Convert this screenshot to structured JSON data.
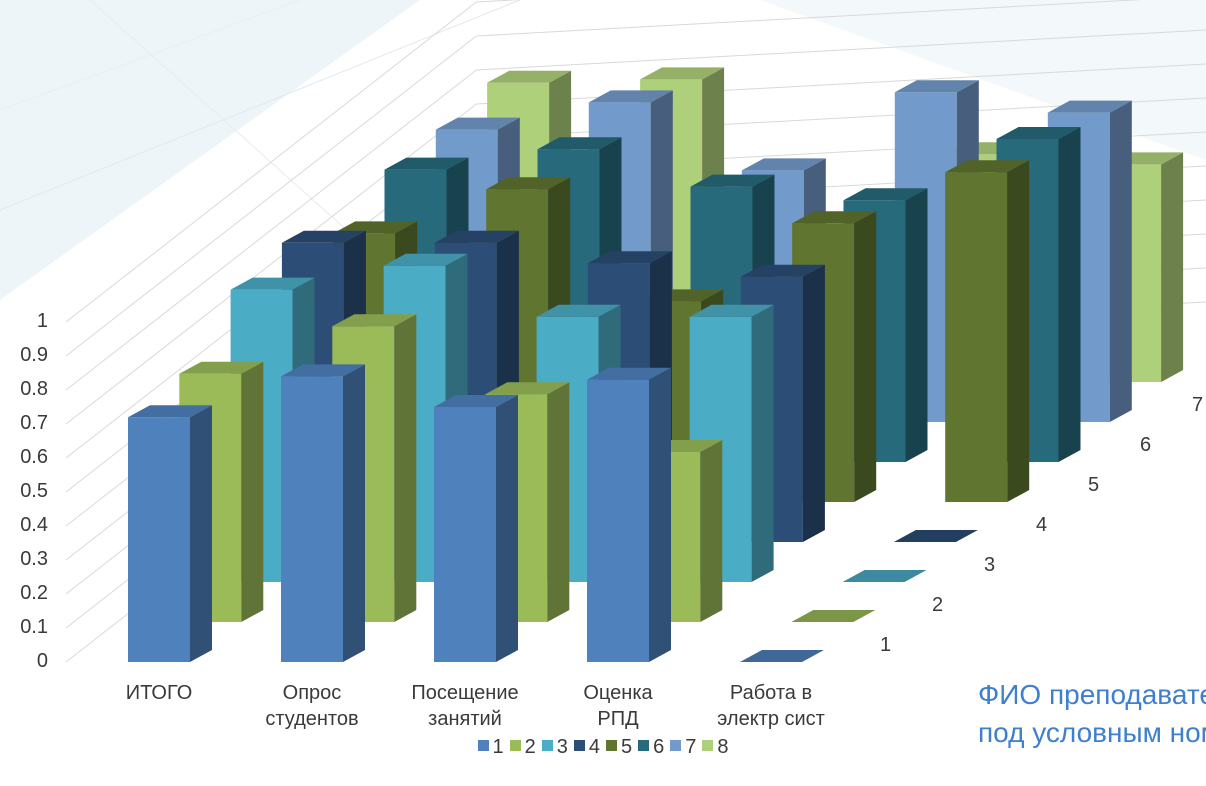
{
  "chart_data": {
    "type": "bar",
    "subtype": "3d-column",
    "title": "",
    "xlabel": "",
    "ylabel": "",
    "ylim": [
      0,
      1
    ],
    "y_ticks": [
      "0",
      "0.1",
      "0.2",
      "0.3",
      "0.4",
      "0.5",
      "0.6",
      "0.7",
      "0.8",
      "0.9",
      "1"
    ],
    "categories": [
      {
        "line1": "ИТОГО",
        "line2": ""
      },
      {
        "line1": "Опрос",
        "line2": "студентов"
      },
      {
        "line1": "Посещение",
        "line2": "занятий"
      },
      {
        "line1": "Оценка",
        "line2": "РПД"
      },
      {
        "line1": "Работа в",
        "line2": "электр сист"
      }
    ],
    "depth_ticks": [
      "1",
      "2",
      "3",
      "4",
      "5",
      "6",
      "7"
    ],
    "series": [
      {
        "name": "1",
        "color": "#4f81bd",
        "values": [
          0.72,
          0.84,
          0.75,
          0.83,
          0
        ]
      },
      {
        "name": "2",
        "color": "#9bbb59",
        "values": [
          0.73,
          0.87,
          0.67,
          0.5,
          0
        ]
      },
      {
        "name": "3",
        "color": "#4bacc6",
        "values": [
          0.86,
          0.93,
          0.78,
          0.78,
          0
        ]
      },
      {
        "name": "4",
        "color": "#2c4d75",
        "values": [
          0.88,
          0.88,
          0.82,
          0.78,
          0
        ]
      },
      {
        "name": "5",
        "color": "#5f7530",
        "values": [
          0.79,
          0.92,
          0.59,
          0.82,
          0.97
        ]
      },
      {
        "name": "6",
        "color": "#276a7c",
        "values": [
          0.86,
          0.92,
          0.81,
          0.77,
          0.95
        ]
      },
      {
        "name": "7",
        "color": "#729aca",
        "values": [
          0.86,
          0.94,
          0.74,
          0.97,
          0.91
        ]
      },
      {
        "name": "8",
        "color": "#afd07a",
        "values": [
          0.88,
          0.89,
          0,
          0.67,
          0.64
        ]
      }
    ],
    "legend_position": "bottom",
    "grid": true
  },
  "caption": {
    "line1": "ФИО преподавателя",
    "line2": "под условным номером"
  }
}
